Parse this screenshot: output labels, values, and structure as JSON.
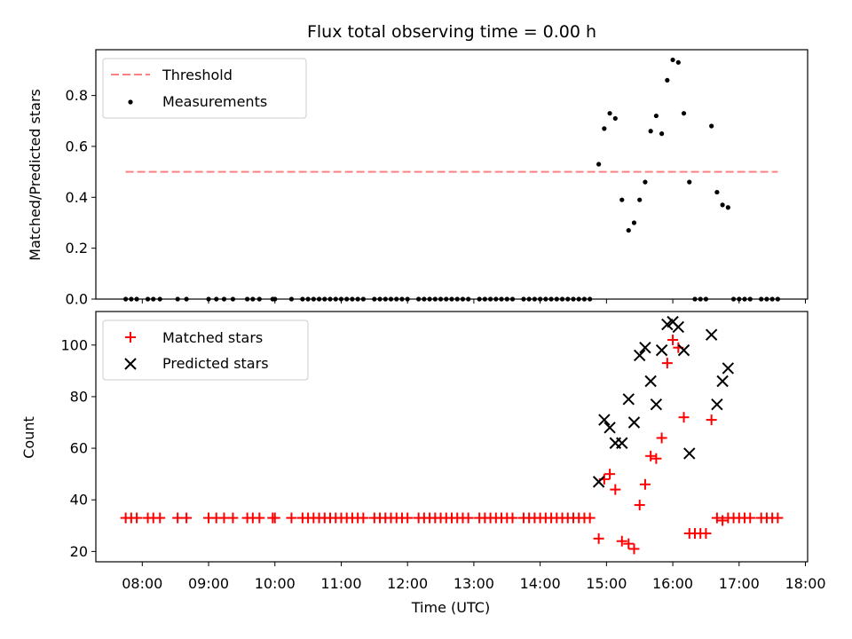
{
  "chart_data": {
    "title": "Flux total observing time = 0.00 h",
    "xlabel": "Time (UTC)",
    "x_ticks": [
      "08:00",
      "09:00",
      "10:00",
      "11:00",
      "12:00",
      "13:00",
      "14:00",
      "15:00",
      "16:00",
      "17:00",
      "18:00"
    ],
    "xlim": [
      "07:18",
      "18:02"
    ],
    "panels": [
      {
        "type": "scatter",
        "ylabel": "Matched/Predicted stars",
        "ylim": [
          0,
          0.98
        ],
        "y_ticks": [
          "0.0",
          "0.2",
          "0.4",
          "0.6",
          "0.8"
        ],
        "legend_position": "top-left",
        "threshold": {
          "name": "Threshold",
          "value": 0.5,
          "x_start": "07:45",
          "x_end": "17:35",
          "color": "#ff8080",
          "style": "dashed"
        },
        "series": [
          {
            "name": "Measurements",
            "marker": "dot",
            "color": "#000000",
            "points": [
              [
                "07:45",
                0
              ],
              [
                "07:50",
                0
              ],
              [
                "07:55",
                0
              ],
              [
                "08:05",
                0
              ],
              [
                "08:10",
                0
              ],
              [
                "08:16",
                0
              ],
              [
                "08:32",
                0
              ],
              [
                "08:40",
                0
              ],
              [
                "09:00",
                0
              ],
              [
                "09:07",
                0
              ],
              [
                "09:14",
                0
              ],
              [
                "09:22",
                0
              ],
              [
                "09:35",
                0
              ],
              [
                "09:40",
                0
              ],
              [
                "09:46",
                0
              ],
              [
                "09:58",
                0
              ],
              [
                "10:00",
                0
              ],
              [
                "10:15",
                0
              ],
              [
                "10:25",
                0
              ],
              [
                "10:30",
                0
              ],
              [
                "10:35",
                0
              ],
              [
                "10:40",
                0
              ],
              [
                "10:45",
                0
              ],
              [
                "10:50",
                0
              ],
              [
                "10:55",
                0
              ],
              [
                "11:00",
                0
              ],
              [
                "11:05",
                0
              ],
              [
                "11:10",
                0
              ],
              [
                "11:15",
                0
              ],
              [
                "11:20",
                0
              ],
              [
                "11:30",
                0
              ],
              [
                "11:35",
                0
              ],
              [
                "11:40",
                0
              ],
              [
                "11:45",
                0
              ],
              [
                "11:50",
                0
              ],
              [
                "11:55",
                0
              ],
              [
                "12:00",
                0
              ],
              [
                "12:10",
                0
              ],
              [
                "12:15",
                0
              ],
              [
                "12:20",
                0
              ],
              [
                "12:25",
                0
              ],
              [
                "12:30",
                0
              ],
              [
                "12:35",
                0
              ],
              [
                "12:40",
                0
              ],
              [
                "12:45",
                0
              ],
              [
                "12:50",
                0
              ],
              [
                "12:55",
                0
              ],
              [
                "13:05",
                0
              ],
              [
                "13:10",
                0
              ],
              [
                "13:15",
                0
              ],
              [
                "13:20",
                0
              ],
              [
                "13:25",
                0
              ],
              [
                "13:30",
                0
              ],
              [
                "13:35",
                0
              ],
              [
                "13:45",
                0
              ],
              [
                "13:50",
                0
              ],
              [
                "13:55",
                0
              ],
              [
                "14:00",
                0
              ],
              [
                "14:05",
                0
              ],
              [
                "14:10",
                0
              ],
              [
                "14:15",
                0
              ],
              [
                "14:20",
                0
              ],
              [
                "14:25",
                0
              ],
              [
                "14:30",
                0
              ],
              [
                "14:35",
                0
              ],
              [
                "14:40",
                0
              ],
              [
                "14:45",
                0
              ],
              [
                "14:53",
                0.53
              ],
              [
                "14:58",
                0.67
              ],
              [
                "15:03",
                0.73
              ],
              [
                "15:08",
                0.71
              ],
              [
                "15:14",
                0.39
              ],
              [
                "15:20",
                0.27
              ],
              [
                "15:25",
                0.3
              ],
              [
                "15:30",
                0.39
              ],
              [
                "15:35",
                0.46
              ],
              [
                "15:40",
                0.66
              ],
              [
                "15:45",
                0.72
              ],
              [
                "15:50",
                0.65
              ],
              [
                "15:55",
                0.86
              ],
              [
                "16:00",
                0.94
              ],
              [
                "16:05",
                0.93
              ],
              [
                "16:10",
                0.73
              ],
              [
                "16:15",
                0.46
              ],
              [
                "16:20",
                0
              ],
              [
                "16:25",
                0
              ],
              [
                "16:30",
                0
              ],
              [
                "16:35",
                0.68
              ],
              [
                "16:40",
                0.42
              ],
              [
                "16:45",
                0.37
              ],
              [
                "16:50",
                0.36
              ],
              [
                "16:55",
                0
              ],
              [
                "17:00",
                0
              ],
              [
                "17:05",
                0
              ],
              [
                "17:10",
                0
              ],
              [
                "17:20",
                0
              ],
              [
                "17:25",
                0
              ],
              [
                "17:30",
                0
              ],
              [
                "17:35",
                0
              ]
            ]
          }
        ]
      },
      {
        "type": "scatter",
        "ylabel": "Count",
        "ylim": [
          16,
          113
        ],
        "y_ticks": [
          "20",
          "40",
          "60",
          "80",
          "100"
        ],
        "legend_position": "top-left",
        "series": [
          {
            "name": "Matched stars",
            "marker": "plus",
            "color": "#ff0000",
            "points": [
              [
                "07:45",
                33
              ],
              [
                "07:50",
                33
              ],
              [
                "07:55",
                33
              ],
              [
                "08:05",
                33
              ],
              [
                "08:10",
                33
              ],
              [
                "08:16",
                33
              ],
              [
                "08:32",
                33
              ],
              [
                "08:40",
                33
              ],
              [
                "09:00",
                33
              ],
              [
                "09:07",
                33
              ],
              [
                "09:14",
                33
              ],
              [
                "09:22",
                33
              ],
              [
                "09:35",
                33
              ],
              [
                "09:40",
                33
              ],
              [
                "09:46",
                33
              ],
              [
                "09:58",
                33
              ],
              [
                "10:00",
                33
              ],
              [
                "10:15",
                33
              ],
              [
                "10:25",
                33
              ],
              [
                "10:30",
                33
              ],
              [
                "10:35",
                33
              ],
              [
                "10:40",
                33
              ],
              [
                "10:45",
                33
              ],
              [
                "10:50",
                33
              ],
              [
                "10:55",
                33
              ],
              [
                "11:00",
                33
              ],
              [
                "11:05",
                33
              ],
              [
                "11:10",
                33
              ],
              [
                "11:15",
                33
              ],
              [
                "11:20",
                33
              ],
              [
                "11:30",
                33
              ],
              [
                "11:35",
                33
              ],
              [
                "11:40",
                33
              ],
              [
                "11:45",
                33
              ],
              [
                "11:50",
                33
              ],
              [
                "11:55",
                33
              ],
              [
                "12:00",
                33
              ],
              [
                "12:10",
                33
              ],
              [
                "12:15",
                33
              ],
              [
                "12:20",
                33
              ],
              [
                "12:25",
                33
              ],
              [
                "12:30",
                33
              ],
              [
                "12:35",
                33
              ],
              [
                "12:40",
                33
              ],
              [
                "12:45",
                33
              ],
              [
                "12:50",
                33
              ],
              [
                "12:55",
                33
              ],
              [
                "13:05",
                33
              ],
              [
                "13:10",
                33
              ],
              [
                "13:15",
                33
              ],
              [
                "13:20",
                33
              ],
              [
                "13:25",
                33
              ],
              [
                "13:30",
                33
              ],
              [
                "13:35",
                33
              ],
              [
                "13:45",
                33
              ],
              [
                "13:50",
                33
              ],
              [
                "13:55",
                33
              ],
              [
                "14:00",
                33
              ],
              [
                "14:05",
                33
              ],
              [
                "14:10",
                33
              ],
              [
                "14:15",
                33
              ],
              [
                "14:20",
                33
              ],
              [
                "14:25",
                33
              ],
              [
                "14:30",
                33
              ],
              [
                "14:35",
                33
              ],
              [
                "14:40",
                33
              ],
              [
                "14:45",
                33
              ],
              [
                "14:53",
                25
              ],
              [
                "14:58",
                48
              ],
              [
                "15:03",
                50
              ],
              [
                "15:08",
                44
              ],
              [
                "15:14",
                24
              ],
              [
                "15:20",
                23
              ],
              [
                "15:25",
                21
              ],
              [
                "15:30",
                38
              ],
              [
                "15:35",
                46
              ],
              [
                "15:40",
                57
              ],
              [
                "15:45",
                56
              ],
              [
                "15:50",
                64
              ],
              [
                "15:55",
                93
              ],
              [
                "16:00",
                102
              ],
              [
                "16:05",
                99
              ],
              [
                "16:10",
                72
              ],
              [
                "16:15",
                27
              ],
              [
                "16:20",
                27
              ],
              [
                "16:25",
                27
              ],
              [
                "16:30",
                27
              ],
              [
                "16:35",
                71
              ],
              [
                "16:40",
                33
              ],
              [
                "16:45",
                32
              ],
              [
                "16:50",
                33
              ],
              [
                "16:55",
                33
              ],
              [
                "17:00",
                33
              ],
              [
                "17:05",
                33
              ],
              [
                "17:10",
                33
              ],
              [
                "17:20",
                33
              ],
              [
                "17:25",
                33
              ],
              [
                "17:30",
                33
              ],
              [
                "17:35",
                33
              ]
            ]
          },
          {
            "name": "Predicted stars",
            "marker": "cross",
            "color": "#000000",
            "points": [
              [
                "14:53",
                47
              ],
              [
                "14:58",
                71
              ],
              [
                "15:03",
                68
              ],
              [
                "15:08",
                62
              ],
              [
                "15:14",
                62
              ],
              [
                "15:20",
                79
              ],
              [
                "15:25",
                70
              ],
              [
                "15:30",
                96
              ],
              [
                "15:35",
                99
              ],
              [
                "15:40",
                86
              ],
              [
                "15:45",
                77
              ],
              [
                "15:50",
                98
              ],
              [
                "15:55",
                108
              ],
              [
                "16:00",
                109
              ],
              [
                "16:05",
                107
              ],
              [
                "16:10",
                98
              ],
              [
                "16:15",
                58
              ],
              [
                "16:35",
                104
              ],
              [
                "16:40",
                77
              ],
              [
                "16:45",
                86
              ],
              [
                "16:50",
                91
              ]
            ]
          }
        ]
      }
    ]
  }
}
